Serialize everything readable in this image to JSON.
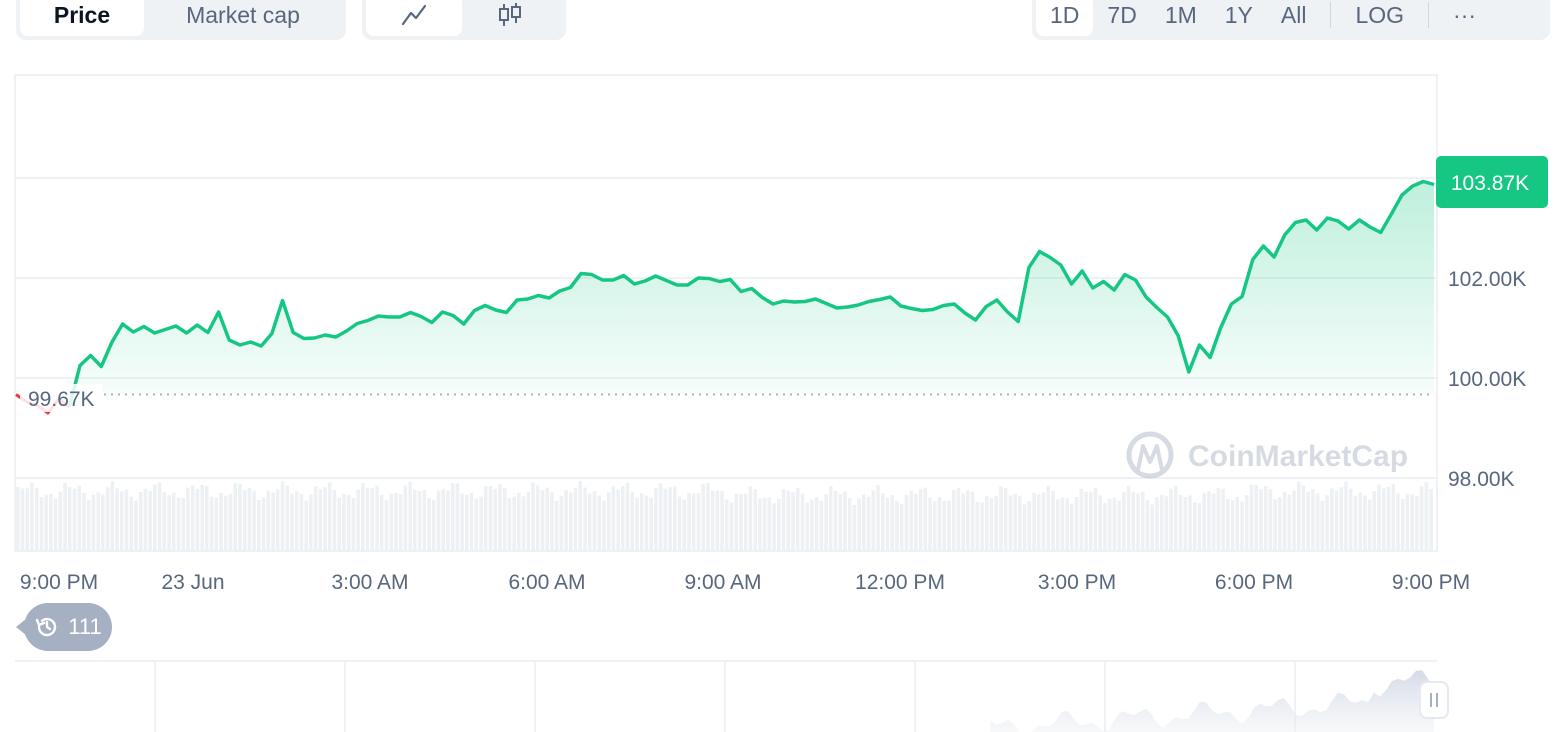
{
  "toolbar": {
    "price_type_tabs": [
      "Price",
      "Market cap"
    ],
    "active_price_type": "Price",
    "chart_type_icons": [
      "line-chart-icon",
      "candlestick-icon"
    ],
    "active_chart_type": "line-chart-icon",
    "ranges": [
      "1D",
      "7D",
      "1M",
      "1Y",
      "All"
    ],
    "active_range": "1D",
    "log_label": "LOG",
    "more_label": "···"
  },
  "watermark": "CoinMarketCap",
  "history_badge": {
    "icon": "history-icon",
    "count": "111"
  },
  "colors": {
    "up_green": "#16c784",
    "down_red": "#ea3943",
    "grid": "#eff2f5",
    "volume": "#e6eaf0",
    "badge": "#a6b0c3"
  },
  "chart_data": {
    "type": "line",
    "title": "",
    "xlabel": "",
    "ylabel": "",
    "x_ticks": [
      "9:00 PM",
      "23 Jun",
      "3:00 AM",
      "6:00 AM",
      "9:00 AM",
      "12:00 PM",
      "3:00 PM",
      "6:00 PM",
      "9:00 PM"
    ],
    "y_ticks": [
      "98.00K",
      "100.00K",
      "102.00K"
    ],
    "ylim": [
      97000,
      105000
    ],
    "reference_price": 99670,
    "reference_label": "99.67K",
    "current_price_label": "103.87K",
    "grid": true,
    "series": [
      {
        "values": [
          99670,
          99520,
          99450,
          99300,
          99580,
          99420,
          100250,
          100450,
          100230,
          100720,
          101080,
          100920,
          101030,
          100900,
          100970,
          101040,
          100900,
          101060,
          100910,
          101320,
          100760,
          100660,
          100720,
          100640,
          100890,
          101550,
          100910,
          100790,
          100800,
          100860,
          100820,
          100940,
          101090,
          101150,
          101240,
          101220,
          101220,
          101310,
          101230,
          101110,
          101320,
          101250,
          101080,
          101350,
          101450,
          101360,
          101310,
          101560,
          101580,
          101650,
          101600,
          101740,
          101810,
          102090,
          102070,
          101960,
          101960,
          102050,
          101880,
          101940,
          102040,
          101950,
          101860,
          101860,
          102000,
          101990,
          101930,
          101970,
          101730,
          101790,
          101610,
          101480,
          101540,
          101520,
          101530,
          101580,
          101490,
          101400,
          101420,
          101460,
          101530,
          101570,
          101620,
          101440,
          101390,
          101350,
          101370,
          101450,
          101480,
          101300,
          101160,
          101430,
          101560,
          101320,
          101130,
          102210,
          102530,
          102410,
          102260,
          101880,
          102140,
          101800,
          101930,
          101760,
          102070,
          101960,
          101620,
          101410,
          101220,
          100850,
          100120,
          100660,
          100410,
          101010,
          101480,
          101630,
          102370,
          102640,
          102420,
          102860,
          103110,
          103160,
          102960,
          103200,
          103140,
          102980,
          103160,
          103020,
          102910,
          103280,
          103660,
          103840,
          103930,
          103870
        ]
      }
    ]
  }
}
